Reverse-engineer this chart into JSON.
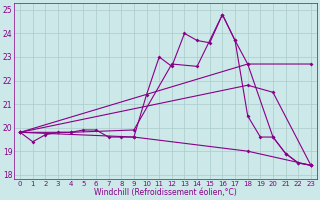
{
  "xlabel": "Windchill (Refroidissement éolien,°C)",
  "bg_color": "#cce8e8",
  "line_color": "#880088",
  "xlim": [
    -0.5,
    23.5
  ],
  "ylim": [
    17.8,
    25.3
  ],
  "yticks": [
    18,
    19,
    20,
    21,
    22,
    23,
    24,
    25
  ],
  "xticks": [
    0,
    1,
    2,
    3,
    4,
    5,
    6,
    7,
    8,
    9,
    10,
    11,
    12,
    13,
    14,
    15,
    16,
    17,
    18,
    19,
    20,
    21,
    22,
    23
  ],
  "series1_x": [
    0,
    1,
    2,
    3,
    4,
    5,
    6,
    7,
    8,
    9,
    10,
    11,
    12,
    13,
    14,
    15,
    16,
    17,
    18,
    19,
    20,
    21,
    22,
    23
  ],
  "series1_y": [
    19.8,
    19.4,
    19.7,
    19.8,
    19.8,
    19.9,
    19.9,
    19.6,
    19.6,
    19.6,
    21.4,
    23.0,
    22.6,
    24.0,
    23.7,
    23.6,
    24.8,
    23.7,
    20.5,
    19.6,
    19.6,
    18.9,
    18.5,
    18.4
  ],
  "series2_x": [
    0,
    4,
    9,
    12,
    14,
    16,
    17,
    18,
    20,
    21,
    22,
    23
  ],
  "series2_y": [
    19.8,
    19.8,
    19.9,
    22.7,
    22.6,
    24.8,
    23.7,
    22.7,
    19.6,
    18.9,
    18.5,
    18.4
  ],
  "series3_x": [
    0,
    18,
    23
  ],
  "series3_y": [
    19.8,
    22.7,
    22.7
  ],
  "series4_x": [
    0,
    18,
    20,
    23
  ],
  "series4_y": [
    19.8,
    21.8,
    21.5,
    18.4
  ],
  "series5_x": [
    0,
    9,
    18,
    23
  ],
  "series5_y": [
    19.8,
    19.6,
    19.0,
    18.4
  ],
  "grid_color": "#aacccc",
  "markersize": 2.0,
  "linewidth": 0.8
}
